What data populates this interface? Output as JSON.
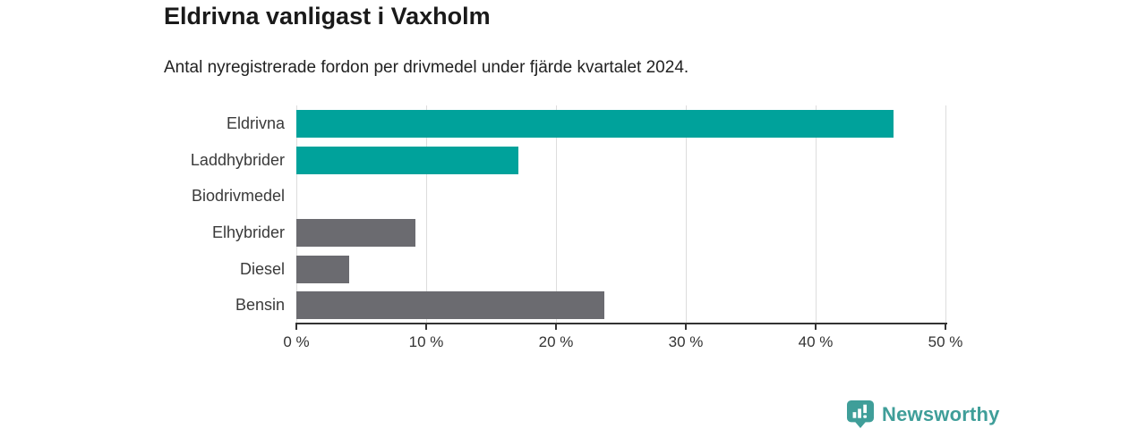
{
  "header": {
    "title": "Eldrivna vanligast i Vaxholm",
    "subtitle": "Antal nyregistrerade fordon per drivmedel under fjärde kvartalet 2024."
  },
  "chart_data": {
    "type": "bar",
    "orientation": "horizontal",
    "title": "Eldrivna vanligast i Vaxholm",
    "subtitle": "Antal nyregistrerade fordon per drivmedel under fjärde kvartalet 2024.",
    "categories": [
      "Eldrivna",
      "Laddhybrider",
      "Biodrivmedel",
      "Elhybrider",
      "Diesel",
      "Bensin"
    ],
    "values": [
      46.0,
      17.1,
      0,
      9.2,
      4.1,
      23.7
    ],
    "unit": "%",
    "bar_colors": [
      "#00a29b",
      "#00a29b",
      "#6b6b70",
      "#6b6b70",
      "#6b6b70",
      "#6b6b70"
    ],
    "xlabel": "",
    "ylabel": "",
    "xlim": [
      0,
      50
    ],
    "xticks": [
      0,
      10,
      20,
      30,
      40,
      50
    ],
    "xtick_labels": [
      "0 %",
      "10 %",
      "20 %",
      "30 %",
      "40 %",
      "50 %"
    ],
    "grid": true,
    "legend": false
  },
  "colors": {
    "teal_bar": "#00a29b",
    "gray_bar": "#6b6b70",
    "gridline": "#dddddd",
    "axis": "#333333",
    "brand_teal": "#3f9e99"
  },
  "footer": {
    "brand": "Newsworthy",
    "brand_color": "#3f9e99"
  }
}
